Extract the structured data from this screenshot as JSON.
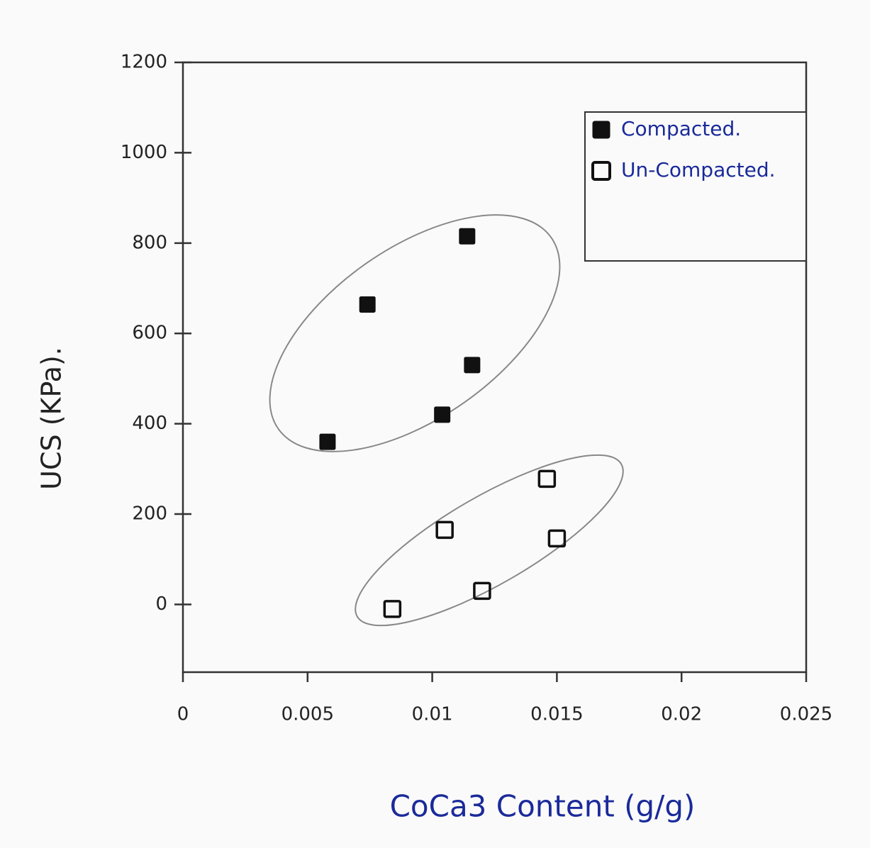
{
  "chart_data": {
    "type": "scatter",
    "xlabel": "CoCa3 Content (g/g)",
    "ylabel": "UCS (KPa).",
    "xlim": [
      0,
      0.025
    ],
    "ylim": [
      -150,
      1200
    ],
    "xticks": [
      0,
      0.005,
      0.01,
      0.015,
      0.02,
      0.025
    ],
    "yticks": [
      0,
      200,
      400,
      600,
      800,
      1000,
      1200
    ],
    "legend": "upper right",
    "series": [
      {
        "name": "Compacted.",
        "color": "#111111",
        "filled": true,
        "x": [
          0.0058,
          0.0074,
          0.0114,
          0.0116,
          0.0104
        ],
        "values": [
          360,
          664,
          815,
          530,
          420
        ]
      },
      {
        "name": "Un-Compacted.",
        "color": "#111111",
        "filled": false,
        "x": [
          0.0084,
          0.0105,
          0.012,
          0.0146,
          0.015
        ],
        "values": [
          -10,
          165,
          30,
          278,
          146
        ]
      }
    ]
  }
}
